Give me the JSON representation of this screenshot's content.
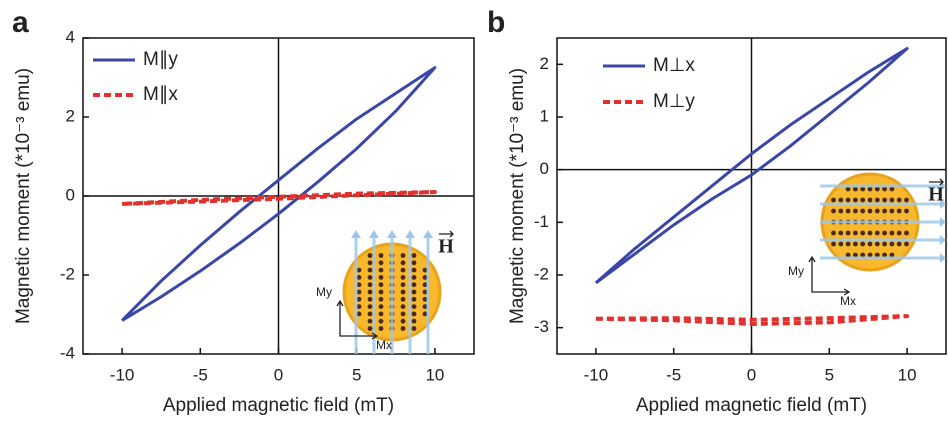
{
  "chart_data": [
    {
      "type": "line",
      "panel_label": "a",
      "xlabel": "Applied magnetic field (mT)",
      "ylabel": "Magnetic moment (*10⁻³ emu)",
      "xlim": [
        -12.5,
        12.5
      ],
      "ylim": [
        -4,
        4
      ],
      "xticks": [
        -10,
        -5,
        0,
        5,
        10
      ],
      "yticks": [
        -4,
        -2,
        0,
        2,
        4
      ],
      "annotations": [
        "H",
        "My",
        "Mx"
      ],
      "series": [
        {
          "name": "M∥y",
          "color": "#3a46a8",
          "style": "solid",
          "x": [
            -10,
            -7.5,
            -5,
            -2.5,
            0,
            2.5,
            5,
            7.5,
            10,
            7.5,
            5,
            2.5,
            0,
            -2.5,
            -5,
            -7.5,
            -10
          ],
          "values": [
            -3.15,
            -2.55,
            -1.9,
            -1.2,
            -0.45,
            0.35,
            1.2,
            2.15,
            3.25,
            2.6,
            1.95,
            1.2,
            0.4,
            -0.4,
            -1.25,
            -2.15,
            -3.15
          ]
        },
        {
          "name": "M∥x",
          "color": "#e2302c",
          "style": "dashed",
          "x": [
            -10,
            -5,
            0,
            5,
            10,
            5,
            0,
            -5,
            -10
          ],
          "values": [
            -0.2,
            -0.14,
            -0.07,
            0.02,
            0.1,
            0.06,
            -0.02,
            -0.1,
            -0.2
          ]
        }
      ]
    },
    {
      "type": "line",
      "panel_label": "b",
      "xlabel": "Applied magnetic field (mT)",
      "ylabel": "Magnetic moment (*10⁻³ emu)",
      "xlim": [
        -12.5,
        12.5
      ],
      "ylim": [
        -3.5,
        2.5
      ],
      "xticks": [
        -10,
        -5,
        0,
        5,
        10
      ],
      "yticks": [
        -3,
        -2,
        -1,
        0,
        1,
        2
      ],
      "annotations": [
        "H",
        "My",
        "Mx"
      ],
      "series": [
        {
          "name": "M⊥x",
          "color": "#3a46a8",
          "style": "solid",
          "x": [
            -10,
            -7.5,
            -5,
            -2.5,
            0,
            2.5,
            5,
            7.5,
            10,
            7.5,
            5,
            2.5,
            0,
            -2.5,
            -5,
            -7.5,
            -10
          ],
          "values": [
            -2.15,
            -1.6,
            -1.05,
            -0.55,
            -0.1,
            0.45,
            1.05,
            1.65,
            2.3,
            1.85,
            1.35,
            0.85,
            0.3,
            -0.3,
            -0.9,
            -1.5,
            -2.15
          ]
        },
        {
          "name": "M⊥y",
          "color": "#e2302c",
          "style": "dashed",
          "x": [
            -10,
            -5,
            0,
            5,
            10,
            5,
            0,
            -5,
            -10
          ],
          "values": [
            -2.83,
            -2.86,
            -2.93,
            -2.9,
            -2.78,
            -2.82,
            -2.85,
            -2.82,
            -2.83
          ]
        }
      ]
    }
  ]
}
